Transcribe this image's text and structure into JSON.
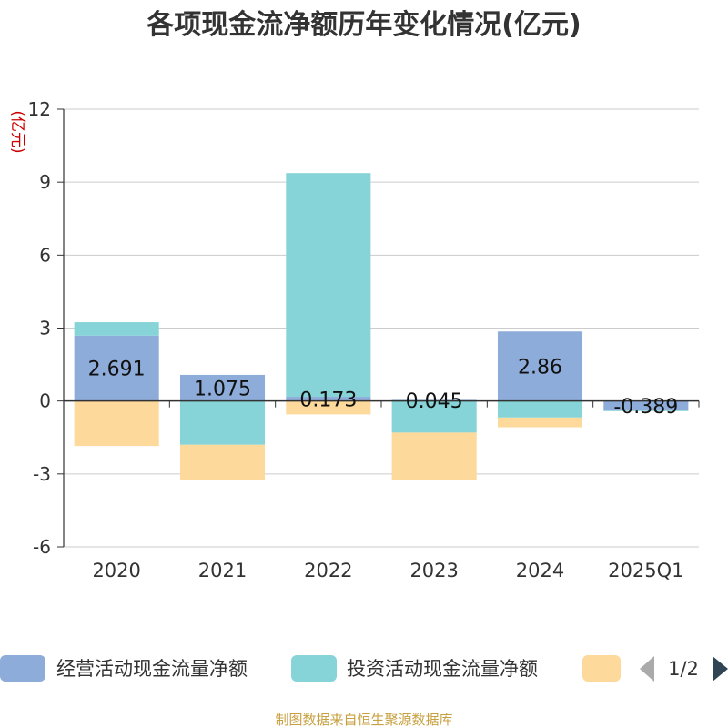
{
  "chart_data": {
    "type": "bar",
    "stacked": true,
    "title": "各项现金流净额历年变化情况(亿元)",
    "unit_label": "(亿元)",
    "categories": [
      "2020",
      "2021",
      "2022",
      "2023",
      "2024",
      "2025Q1"
    ],
    "ylim": [
      -6,
      12
    ],
    "yticks": [
      "12",
      "9",
      "6",
      "3",
      "0",
      "-3",
      "-6"
    ],
    "ytick_values": [
      12,
      9,
      6,
      3,
      0,
      -3,
      -6
    ],
    "grid": true,
    "series": [
      {
        "name": "经营活动现金流量净额",
        "color": "#8eacd9",
        "values": [
          2.691,
          1.075,
          0.173,
          0.045,
          2.86,
          -0.389
        ],
        "labels": [
          "2.691",
          "1.075",
          "0.173",
          "0.045",
          "2.86",
          "-0.389"
        ]
      },
      {
        "name": "投资活动现金流量净额",
        "color": "#86d4d8",
        "values": [
          0.55,
          -1.8,
          9.2,
          -1.3,
          -0.68,
          -0.03
        ]
      },
      {
        "name": "",
        "color": "#fdd99b",
        "values": [
          -1.85,
          -1.45,
          -0.55,
          -1.95,
          -0.4,
          0
        ]
      }
    ],
    "legend": {
      "placement": "bottom",
      "page_indicator": "1/2"
    }
  },
  "source": "制图数据来自恒生聚源数据库"
}
